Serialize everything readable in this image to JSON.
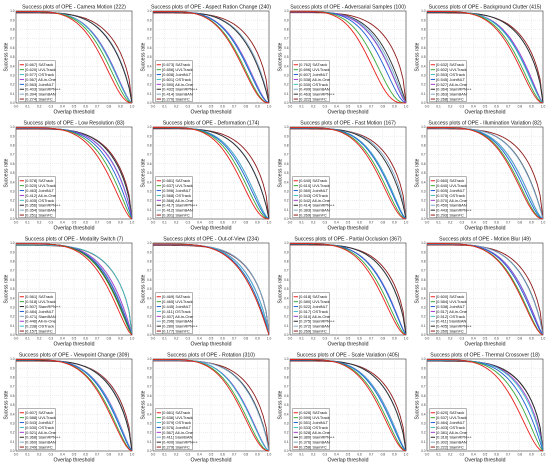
{
  "common": {
    "ylabel": "Success rate",
    "xlabel": "Overlap threshold",
    "xlim": [
      0,
      1
    ],
    "ylim": [
      0,
      1
    ],
    "grid": true,
    "legend_placement": "bottom-left"
  },
  "colors": {
    "SATrack": "#e8201c",
    "UVLTrack": "#3aa63a",
    "JointNLT": "#1f5fd6",
    "OSTrack": "#3dbfc4",
    "All-in-One": "#a23bd1",
    "SiamRPN++": "#2b2b2b",
    "SiamBAN": "#7ea7c9",
    "SiamFC": "#8f1a1a"
  },
  "chart_data": [
    {
      "type": "line",
      "title": "Success plots of OPE - Camera Motion (222)",
      "series": [
        {
          "name": "SATrack",
          "auc": 0.667,
          "label": "[0.667] SATrack"
        },
        {
          "name": "UVLTrack",
          "auc": 0.62,
          "label": "[0.620] UVLTrack"
        },
        {
          "name": "OSTrack",
          "auc": 0.577,
          "label": "[0.577] OSTrack"
        },
        {
          "name": "All-in-One",
          "auc": 0.567,
          "label": "[0.567] All-in-One"
        },
        {
          "name": "JointNLT",
          "auc": 0.563,
          "label": "[0.563] JointNLT"
        },
        {
          "name": "SiamRPN++",
          "auc": 0.403,
          "label": "[0.403] SiamRPN++"
        },
        {
          "name": "SiamBAN",
          "auc": 0.394,
          "label": "[0.394] SiamBAN"
        },
        {
          "name": "SiamFC",
          "auc": 0.274,
          "label": "[0.274] SiamFC"
        }
      ]
    },
    {
      "type": "line",
      "title": "Success plots of OPE - Aspect Ration Change (240)",
      "series": [
        {
          "name": "SATrack",
          "auc": 0.673,
          "label": "[0.673] SATrack"
        },
        {
          "name": "UVLTrack",
          "auc": 0.656,
          "label": "[0.656] UVLTrack"
        },
        {
          "name": "JointNLT",
          "auc": 0.608,
          "label": "[0.608] JointNLT"
        },
        {
          "name": "OSTrack",
          "auc": 0.601,
          "label": "[0.601] OSTrack"
        },
        {
          "name": "All-in-One",
          "auc": 0.59,
          "label": "[0.590] All-in-One"
        },
        {
          "name": "SiamRPN++",
          "auc": 0.432,
          "label": "[0.432] SiamRPN++"
        },
        {
          "name": "SiamBAN",
          "auc": 0.414,
          "label": "[0.414] SiamBAN"
        },
        {
          "name": "SiamFC",
          "auc": 0.27,
          "label": "[0.270] SiamFC"
        }
      ]
    },
    {
      "type": "line",
      "title": "Success plots of OPE - Adversarial Samples (100)",
      "series": [
        {
          "name": "SATrack",
          "auc": 0.762,
          "label": "[0.762] SATrack"
        },
        {
          "name": "UVLTrack",
          "auc": 0.696,
          "label": "[0.696] UVLTrack"
        },
        {
          "name": "JointNLT",
          "auc": 0.607,
          "label": "[0.607] JointNLT"
        },
        {
          "name": "All-in-One",
          "auc": 0.538,
          "label": "[0.538] All-in-One"
        },
        {
          "name": "OSTrack",
          "auc": 0.53,
          "label": "[0.530] OSTrack"
        },
        {
          "name": "SiamBAN",
          "auc": 0.499,
          "label": "[0.499] SiamBAN"
        },
        {
          "name": "SiamRPN++",
          "auc": 0.463,
          "label": "[0.463] SiamRPN++"
        },
        {
          "name": "SiamFC",
          "auc": 0.322,
          "label": "[0.322] SiamFC"
        }
      ]
    },
    {
      "type": "line",
      "title": "Success plots of OPE - Background Clutter (415)",
      "series": [
        {
          "name": "SATrack",
          "auc": 0.632,
          "label": "[0.632] SATrack"
        },
        {
          "name": "UVLTrack",
          "auc": 0.602,
          "label": "[0.602] UVLTrack"
        },
        {
          "name": "OSTrack",
          "auc": 0.553,
          "label": "[0.553] OSTrack"
        },
        {
          "name": "JointNLT",
          "auc": 0.545,
          "label": "[0.545] JointNLT"
        },
        {
          "name": "All-in-One",
          "auc": 0.527,
          "label": "[0.527] All-in-One"
        },
        {
          "name": "SiamRPN++",
          "auc": 0.364,
          "label": "[0.364] SiamRPN++"
        },
        {
          "name": "SiamBAN",
          "auc": 0.363,
          "label": "[0.363] SiamBAN"
        },
        {
          "name": "SiamFC",
          "auc": 0.268,
          "label": "[0.268] SiamFC"
        }
      ]
    },
    {
      "type": "line",
      "title": "Success plots of OPE - Low Resolution (83)",
      "series": [
        {
          "name": "SATrack",
          "auc": 0.578,
          "label": "[0.578] SATrack"
        },
        {
          "name": "UVLTrack",
          "auc": 0.52,
          "label": "[0.520] UVLTrack"
        },
        {
          "name": "JointNLT",
          "auc": 0.463,
          "label": "[0.463] JointNLT"
        },
        {
          "name": "All-in-One",
          "auc": 0.412,
          "label": "[0.412] All-in-One"
        },
        {
          "name": "OSTrack",
          "auc": 0.405,
          "label": "[0.405] OSTrack"
        },
        {
          "name": "SiamRPN++",
          "auc": 0.356,
          "label": "[0.356] SiamRPN++"
        },
        {
          "name": "SiamBAN",
          "auc": 0.354,
          "label": "[0.354] SiamBAN"
        },
        {
          "name": "SiamFC",
          "auc": 0.251,
          "label": "[0.251] SiamFC"
        }
      ]
    },
    {
      "type": "line",
      "title": "Success plots of OPE - Deformation (174)",
      "series": [
        {
          "name": "SATrack",
          "auc": 0.681,
          "label": "[0.681] SATrack"
        },
        {
          "name": "UVLTrack",
          "auc": 0.637,
          "label": "[0.637] UVLTrack"
        },
        {
          "name": "JointNLT",
          "auc": 0.596,
          "label": "[0.596] JointNLT"
        },
        {
          "name": "OSTrack",
          "auc": 0.568,
          "label": "[0.568] OSTrack"
        },
        {
          "name": "All-in-One",
          "auc": 0.566,
          "label": "[0.566] All-in-One"
        },
        {
          "name": "SiamRPN++",
          "auc": 0.417,
          "label": "[0.417] SiamRPN++"
        },
        {
          "name": "SiamBAN",
          "auc": 0.412,
          "label": "[0.412] SiamBAN"
        },
        {
          "name": "SiamFC",
          "auc": 0.301,
          "label": "[0.301] SiamFC"
        }
      ]
    },
    {
      "type": "line",
      "title": "Success plots of OPE - Fast Motion (167)",
      "series": [
        {
          "name": "SATrack",
          "auc": 0.64,
          "label": "[0.640] SATrack"
        },
        {
          "name": "UVLTrack",
          "auc": 0.61,
          "label": "[0.610] UVLTrack"
        },
        {
          "name": "JointNLT",
          "auc": 0.56,
          "label": "[0.560] JointNLT"
        },
        {
          "name": "OSTrack",
          "auc": 0.543,
          "label": "[0.543] OSTrack"
        },
        {
          "name": "All-in-One",
          "auc": 0.542,
          "label": "[0.542] All-in-One"
        },
        {
          "name": "SiamRPN++",
          "auc": 0.414,
          "label": "[0.414] SiamRPN++"
        },
        {
          "name": "SiamBAN",
          "auc": 0.383,
          "label": "[0.383] SiamBAN"
        },
        {
          "name": "SiamFC",
          "auc": 0.269,
          "label": "[0.269] SiamFC"
        }
      ]
    },
    {
      "type": "line",
      "title": "Success plots of OPE - Illumination Variation (82)",
      "series": [
        {
          "name": "SATrack",
          "auc": 0.66,
          "label": "[0.660] SATrack"
        },
        {
          "name": "UVLTrack",
          "auc": 0.64,
          "label": "[0.640] UVLTrack"
        },
        {
          "name": "JointNLT",
          "auc": 0.605,
          "label": "[0.605] JointNLT"
        },
        {
          "name": "OSTrack",
          "auc": 0.575,
          "label": "[0.575] OSTrack"
        },
        {
          "name": "All-in-One",
          "auc": 0.57,
          "label": "[0.570] All-in-One"
        },
        {
          "name": "SiamBAN",
          "auc": 0.45,
          "label": "[0.450] SiamBAN"
        },
        {
          "name": "SiamRPN++",
          "auc": 0.443,
          "label": "[0.443] SiamRPN++"
        },
        {
          "name": "SiamFC",
          "auc": 0.293,
          "label": "[0.293] SiamFC"
        }
      ]
    },
    {
      "type": "line",
      "title": "Success plots of OPE - Modality Switch (7)",
      "series": [
        {
          "name": "SATrack",
          "auc": 0.561,
          "label": "[0.561] SATrack"
        },
        {
          "name": "UVLTrack",
          "auc": 0.518,
          "label": "[0.518] UVLTrack"
        },
        {
          "name": "SiamRPN++",
          "auc": 0.507,
          "label": "[0.507] SiamRPN++"
        },
        {
          "name": "JointNLT",
          "auc": 0.484,
          "label": "[0.484] JointNLT"
        },
        {
          "name": "SiamBAN",
          "auc": 0.471,
          "label": "[0.471] SiamBAN"
        },
        {
          "name": "All-in-One",
          "auc": 0.446,
          "label": "[0.446] All-in-One"
        },
        {
          "name": "OSTrack",
          "auc": 0.238,
          "label": "[0.238] OSTrack"
        },
        {
          "name": "SiamFC",
          "auc": 0.157,
          "label": "[0.157] SiamFC"
        }
      ]
    },
    {
      "type": "line",
      "title": "Success plots of OPE - Out-of-View (234)",
      "series": [
        {
          "name": "SATrack",
          "auc": 0.469,
          "label": "[0.469] SATrack"
        },
        {
          "name": "UVLTrack",
          "auc": 0.465,
          "label": "[0.465] UVLTrack"
        },
        {
          "name": "JointNLT",
          "auc": 0.445,
          "label": "[0.445] JointNLT"
        },
        {
          "name": "OSTrack",
          "auc": 0.411,
          "label": "[0.411] OSTrack"
        },
        {
          "name": "All-in-One",
          "auc": 0.407,
          "label": "[0.407] All-in-One"
        },
        {
          "name": "SiamBAN",
          "auc": 0.296,
          "label": "[0.296] SiamBAN"
        },
        {
          "name": "SiamRPN++",
          "auc": 0.28,
          "label": "[0.280] SiamRPN++"
        },
        {
          "name": "SiamFC",
          "auc": 0.177,
          "label": "[0.177] SiamFC"
        }
      ]
    },
    {
      "type": "line",
      "title": "Success plots of OPE - Partial Occlusion (367)",
      "series": [
        {
          "name": "SATrack",
          "auc": 0.618,
          "label": "[0.618] SATrack"
        },
        {
          "name": "UVLTrack",
          "auc": 0.58,
          "label": "[0.580] UVLTrack"
        },
        {
          "name": "JointNLT",
          "auc": 0.522,
          "label": "[0.522] JointNLT"
        },
        {
          "name": "OSTrack",
          "auc": 0.517,
          "label": "[0.517] OSTrack"
        },
        {
          "name": "All-in-One",
          "auc": 0.51,
          "label": "[0.510] All-in-One"
        },
        {
          "name": "SiamRPN++",
          "auc": 0.375,
          "label": "[0.375] SiamRPN++"
        },
        {
          "name": "SiamBAN",
          "auc": 0.372,
          "label": "[0.372] SiamBAN"
        },
        {
          "name": "SiamFC",
          "auc": 0.269,
          "label": "[0.269] SiamFC"
        }
      ]
    },
    {
      "type": "line",
      "title": "Success plots of OPE - Motion Blur (49)",
      "series": [
        {
          "name": "SATrack",
          "auc": 0.6,
          "label": "[0.600] SATrack"
        },
        {
          "name": "UVLTrack",
          "auc": 0.584,
          "label": "[0.584] UVLTrack"
        },
        {
          "name": "JointNLT",
          "auc": 0.538,
          "label": "[0.538] JointNLT"
        },
        {
          "name": "All-in-One",
          "auc": 0.517,
          "label": "[0.517] All-in-One"
        },
        {
          "name": "OSTrack",
          "auc": 0.512,
          "label": "[0.512] OSTrack"
        },
        {
          "name": "SiamBAN",
          "auc": 0.411,
          "label": "[0.411] SiamBAN"
        },
        {
          "name": "SiamRPN++",
          "auc": 0.405,
          "label": "[0.405] SiamRPN++"
        },
        {
          "name": "SiamFC",
          "auc": 0.26,
          "label": "[0.260] SiamFC"
        }
      ]
    },
    {
      "type": "line",
      "title": "Success plots of OPE - Viewpoint Change (309)",
      "series": [
        {
          "name": "SATrack",
          "auc": 0.607,
          "label": "[0.607] SATrack"
        },
        {
          "name": "UVLTrack",
          "auc": 0.588,
          "label": "[0.588] UVLTrack"
        },
        {
          "name": "JointNLT",
          "auc": 0.543,
          "label": "[0.543] JointNLT"
        },
        {
          "name": "OSTrack",
          "auc": 0.53,
          "label": "[0.530] OSTrack"
        },
        {
          "name": "All-in-One",
          "auc": 0.521,
          "label": "[0.521] All-in-One"
        },
        {
          "name": "SiamRPN++",
          "auc": 0.368,
          "label": "[0.368] SiamRPN++"
        },
        {
          "name": "SiamBAN",
          "auc": 0.36,
          "label": "[0.360] SiamBAN"
        },
        {
          "name": "SiamFC",
          "auc": 0.249,
          "label": "[0.249] SiamFC"
        }
      ]
    },
    {
      "type": "line",
      "title": "Success plots of OPE - Rotation (310)",
      "series": [
        {
          "name": "SATrack",
          "auc": 0.661,
          "label": "[0.661] SATrack"
        },
        {
          "name": "UVLTrack",
          "auc": 0.636,
          "label": "[0.636] UVLTrack"
        },
        {
          "name": "OSTrack",
          "auc": 0.579,
          "label": "[0.579] OSTrack"
        },
        {
          "name": "JointNLT",
          "auc": 0.576,
          "label": "[0.576] JointNLT"
        },
        {
          "name": "All-in-One",
          "auc": 0.567,
          "label": "[0.567] All-in-One"
        },
        {
          "name": "SiamBAN",
          "auc": 0.411,
          "label": "[0.411] SiamBAN"
        },
        {
          "name": "SiamRPN++",
          "auc": 0.4,
          "label": "[0.400] SiamRPN++"
        },
        {
          "name": "SiamFC",
          "auc": 0.279,
          "label": "[0.279] SiamFC"
        }
      ]
    },
    {
      "type": "line",
      "title": "Success plots of OPE - Scale Variation (405)",
      "series": [
        {
          "name": "SATrack",
          "auc": 0.626,
          "label": "[0.626] SATrack"
        },
        {
          "name": "UVLTrack",
          "auc": 0.599,
          "label": "[0.599] UVLTrack"
        },
        {
          "name": "JointNLT",
          "auc": 0.551,
          "label": "[0.551] JointNLT"
        },
        {
          "name": "OSTrack",
          "auc": 0.533,
          "label": "[0.533] OSTrack"
        },
        {
          "name": "All-in-One",
          "auc": 0.528,
          "label": "[0.528] All-in-One"
        },
        {
          "name": "SiamRPN++",
          "auc": 0.38,
          "label": "[0.380] SiamRPN++"
        },
        {
          "name": "SiamBAN",
          "auc": 0.376,
          "label": "[0.376] SiamBAN"
        },
        {
          "name": "SiamFC",
          "auc": 0.258,
          "label": "[0.258] SiamFC"
        }
      ]
    },
    {
      "type": "line",
      "title": "Success plots of OPE - Thermal Crossover (18)",
      "series": [
        {
          "name": "SATrack",
          "auc": 0.62,
          "label": "[0.620] SATrack"
        },
        {
          "name": "UVLTrack",
          "auc": 0.537,
          "label": "[0.537] UVLTrack"
        },
        {
          "name": "JointNLT",
          "auc": 0.464,
          "label": "[0.464] JointNLT"
        },
        {
          "name": "OSTrack",
          "auc": 0.403,
          "label": "[0.403] OSTrack"
        },
        {
          "name": "All-in-One",
          "auc": 0.381,
          "label": "[0.381] All-in-One"
        },
        {
          "name": "SiamRPN++",
          "auc": 0.316,
          "label": "[0.316] SiamRPN++"
        },
        {
          "name": "SiamBAN",
          "auc": 0.302,
          "label": "[0.302] SiamBAN"
        },
        {
          "name": "SiamFC",
          "auc": 0.222,
          "label": "[0.222] SiamFC"
        }
      ]
    }
  ]
}
